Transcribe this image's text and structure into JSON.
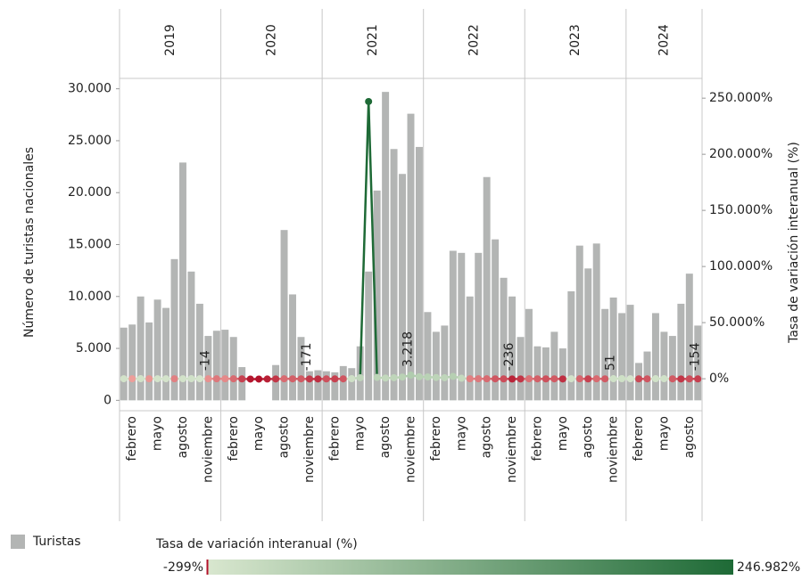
{
  "chart_data": {
    "type": "bar_line",
    "years": [
      "2019",
      "2020",
      "2021",
      "2022",
      "2023",
      "2024"
    ],
    "categories": [
      null,
      "febrero",
      null,
      null,
      "mayo",
      null,
      null,
      "agosto",
      null,
      null,
      "noviembre",
      null,
      null,
      "febrero",
      null,
      null,
      "mayo",
      null,
      null,
      "agosto",
      null,
      null,
      "noviembre",
      null,
      null,
      "febrero",
      null,
      null,
      "mayo",
      null,
      null,
      "agosto",
      null,
      null,
      "noviembre",
      null,
      null,
      "febrero",
      null,
      null,
      "mayo",
      null,
      null,
      "agosto",
      null,
      null,
      "noviembre",
      null,
      null,
      "febrero",
      null,
      null,
      "mayo",
      null,
      null,
      "agosto",
      null,
      null,
      "noviembre",
      null,
      null,
      "febrero",
      null,
      null,
      "mayo",
      null,
      null,
      "agosto",
      null
    ],
    "series": [
      {
        "name": "Turistas",
        "color": "#b3b5b4",
        "values": [
          7000,
          7300,
          10000,
          7500,
          9700,
          8900,
          13600,
          22900,
          12400,
          9300,
          6200,
          6700,
          6800,
          6100,
          3200,
          0,
          0,
          0,
          3400,
          16400,
          10200,
          6100,
          2800,
          2900,
          2800,
          2700,
          3300,
          3100,
          5200,
          12400,
          20200,
          29700,
          24200,
          21800,
          27600,
          24400,
          8500,
          6600,
          7200,
          14400,
          14200,
          10000,
          14200,
          21500,
          15500,
          11800,
          10000,
          6100,
          8800,
          5200,
          5100,
          6600,
          5000,
          10500,
          14900,
          12700,
          15100,
          8800,
          9900,
          8400,
          9200,
          3600,
          4700,
          8400,
          6600,
          6200,
          9300,
          12200,
          7200
        ]
      },
      {
        "name": "Tasa de variación interanual (%)",
        "axis": "y2",
        "values": [
          20,
          -5,
          30,
          -10,
          15,
          10,
          -30,
          25,
          40,
          5,
          -14,
          -40,
          -20,
          -60,
          -150,
          -280,
          -299,
          -250,
          -180,
          -60,
          -80,
          -90,
          -171,
          -200,
          -110,
          -150,
          -100,
          80,
          900,
          246982,
          1200,
          600,
          900,
          1500,
          3218,
          1800,
          1600,
          1100,
          900,
          2100,
          450,
          -30,
          -40,
          -60,
          -100,
          -120,
          -236,
          -180,
          -50,
          -80,
          -110,
          -90,
          -200,
          20,
          -70,
          -150,
          -60,
          -90,
          51,
          70,
          5,
          -130,
          -100,
          30,
          40,
          -90,
          -180,
          -120,
          -154
        ],
        "value_labels": [
          null,
          null,
          null,
          null,
          null,
          null,
          null,
          null,
          null,
          null,
          "-14",
          null,
          null,
          null,
          null,
          null,
          null,
          null,
          null,
          null,
          null,
          null,
          "-171",
          null,
          null,
          null,
          null,
          null,
          null,
          null,
          null,
          null,
          null,
          null,
          "3.218",
          null,
          null,
          null,
          null,
          null,
          null,
          null,
          null,
          null,
          null,
          null,
          "-236",
          null,
          null,
          null,
          null,
          null,
          null,
          null,
          null,
          null,
          null,
          null,
          "51",
          null,
          null,
          null,
          null,
          null,
          null,
          null,
          null,
          null,
          "-154"
        ]
      }
    ],
    "ylabel": "Número de turistas nacionales",
    "y2label": "Tasa de variación interanual (%)",
    "ylim": [
      -1000,
      31000
    ],
    "yticks": [
      0,
      {
        "value": 5000,
        "label": "5.000"
      },
      {
        "value": 10000,
        "label": "10.000"
      },
      {
        "value": 15000,
        "label": "15.000"
      },
      {
        "value": 20000,
        "label": "20.000"
      },
      {
        "value": 25000,
        "label": "25.000"
      },
      {
        "value": 30000,
        "label": "30.000"
      }
    ],
    "y2lim": [
      -28500,
      267600
    ],
    "y2ticks": [
      {
        "value": 0,
        "label": "0%"
      },
      {
        "value": 50000,
        "label": "50.000%"
      },
      {
        "value": 100000,
        "label": "100.000%"
      },
      {
        "value": 150000,
        "label": "150.000%"
      },
      {
        "value": 200000,
        "label": "200.000%"
      },
      {
        "value": 250000,
        "label": "250.000%"
      }
    ],
    "color_scale": {
      "title": "Tasa de variación interanual (%)",
      "min": {
        "value": -299,
        "label": "-299%"
      },
      "max": {
        "value": 246982,
        "label": "246.982%"
      },
      "negative_colors": [
        "#f6b3aa",
        "#b3122b"
      ],
      "positive_colors": [
        "#d9e7cf",
        "#1e6a36"
      ]
    }
  }
}
